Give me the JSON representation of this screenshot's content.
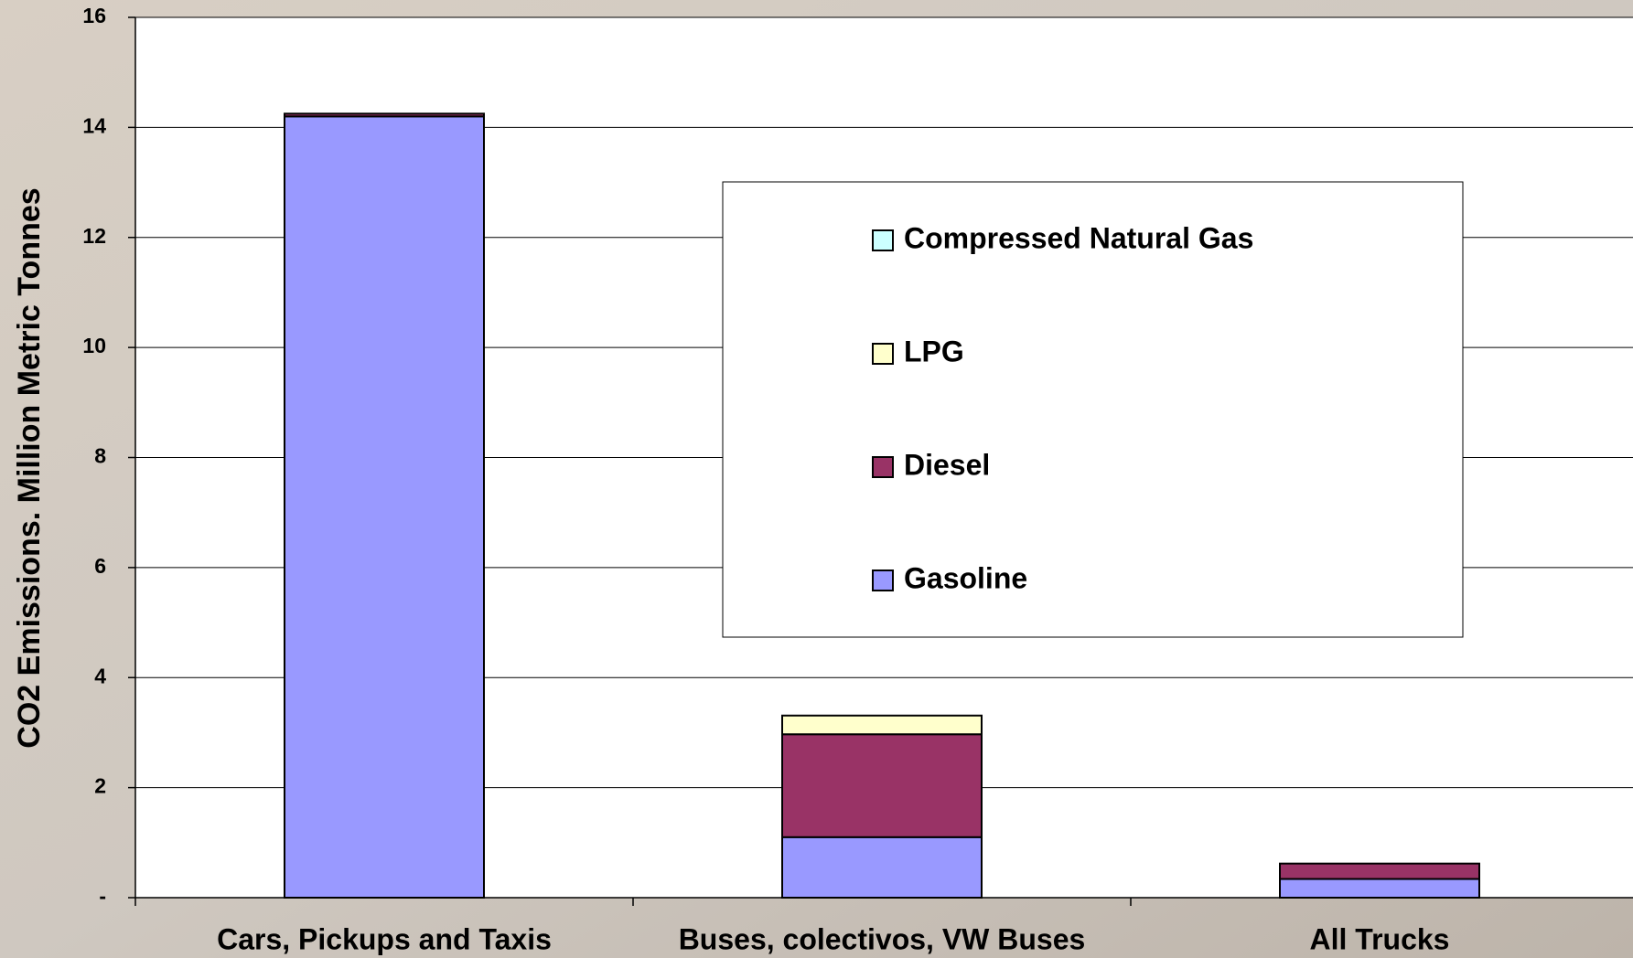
{
  "chart_data": {
    "type": "stacked-bar",
    "y_label": "CO2 Emissions. Million Metric Tonnes",
    "categories": [
      "Cars, Pickups and Taxis",
      "Buses, colectivos, VW Buses",
      "All Trucks"
    ],
    "series": [
      {
        "name": "Gasoline",
        "color": "#9999ff",
        "values": [
          14.2,
          1.1,
          0.34
        ]
      },
      {
        "name": "Diesel",
        "color": "#993366",
        "values": [
          0.05,
          1.87,
          0.28
        ]
      },
      {
        "name": "LPG",
        "color": "#ffffcc",
        "values": [
          0,
          0.34,
          0
        ]
      },
      {
        "name": "Compressed Natural Gas",
        "color": "#ccffff",
        "values": [
          0,
          0,
          0
        ]
      }
    ],
    "ylim": [
      0,
      16
    ],
    "yticks": [
      {
        "value": 0,
        "label": "-"
      },
      2,
      4,
      6,
      8,
      10,
      12,
      14,
      16
    ],
    "grid": true
  }
}
